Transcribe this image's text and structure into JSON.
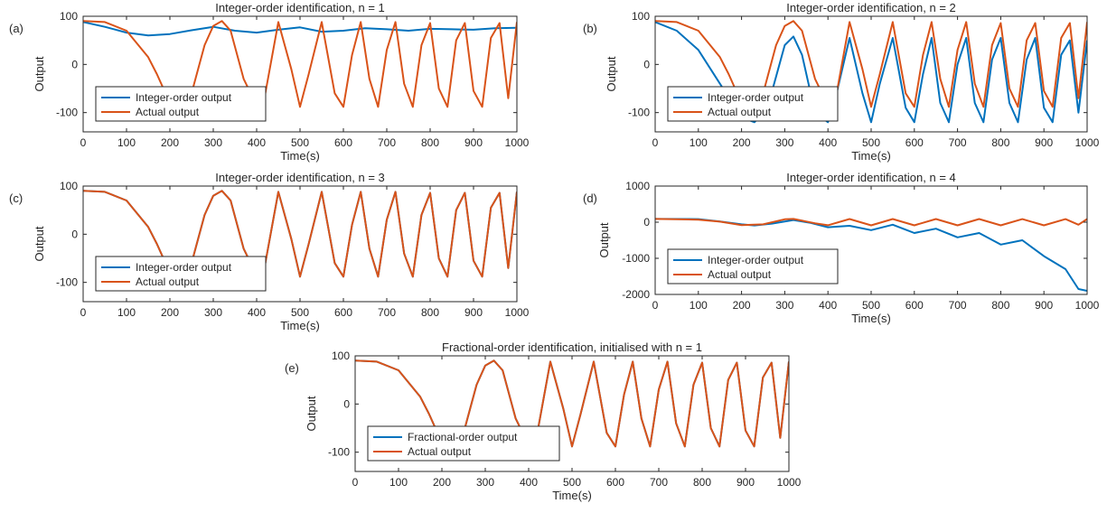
{
  "figure": {
    "panels": [
      {
        "letter": "(a)",
        "title": "Integer-order identification, n = 1",
        "ylabel": "Output",
        "xlabel": "Time(s)"
      },
      {
        "letter": "(b)",
        "title": "Integer-order identification, n = 2",
        "ylabel": "Output",
        "xlabel": "Time(s)"
      },
      {
        "letter": "(c)",
        "title": "Integer-order identification, n = 3",
        "ylabel": "Output",
        "xlabel": "Time(s)"
      },
      {
        "letter": "(d)",
        "title": "Integer-order identification, n = 4",
        "ylabel": "Output",
        "xlabel": "Time(s)"
      },
      {
        "letter": "(e)",
        "title": "Fractional-order identification, initialised with n = 1",
        "ylabel": "Output",
        "xlabel": "Time(s)"
      }
    ]
  },
  "chart_data": [
    {
      "type": "line",
      "title": "Integer-order identification, n = 1",
      "xlabel": "Time(s)",
      "ylabel": "Output",
      "xlim": [
        0,
        1000
      ],
      "ylim": [
        -140,
        100
      ],
      "xticks": [
        0,
        100,
        200,
        300,
        400,
        500,
        600,
        700,
        800,
        900,
        1000
      ],
      "yticks": [
        -100,
        0,
        100
      ],
      "legend": "lower-left",
      "series": [
        {
          "name": "Integer-order output",
          "color": "#0072BD",
          "x": [
            0,
            50,
            100,
            150,
            200,
            250,
            300,
            350,
            400,
            450,
            500,
            550,
            600,
            650,
            700,
            750,
            800,
            850,
            900,
            950,
            1000
          ],
          "y": [
            88,
            78,
            66,
            60,
            63,
            71,
            78,
            70,
            66,
            72,
            77,
            68,
            70,
            75,
            73,
            70,
            74,
            73,
            72,
            75,
            76
          ]
        },
        {
          "name": "Actual output",
          "color": "#D95319",
          "x": [
            0,
            50,
            100,
            150,
            170,
            200,
            250,
            280,
            300,
            320,
            340,
            370,
            400,
            420,
            450,
            480,
            500,
            520,
            550,
            580,
            600,
            620,
            640,
            660,
            680,
            700,
            720,
            740,
            760,
            780,
            800,
            820,
            840,
            860,
            880,
            900,
            920,
            940,
            960,
            980,
            1000
          ],
          "y": [
            90,
            88,
            70,
            15,
            -20,
            -80,
            -60,
            40,
            80,
            90,
            70,
            -30,
            -85,
            -60,
            88,
            -10,
            -88,
            -20,
            88,
            -60,
            -88,
            20,
            88,
            -30,
            -88,
            30,
            88,
            -40,
            -88,
            40,
            86,
            -50,
            -88,
            50,
            86,
            -55,
            -88,
            55,
            86,
            -70,
            88
          ]
        }
      ]
    },
    {
      "type": "line",
      "title": "Integer-order identification, n = 2",
      "xlabel": "Time(s)",
      "ylabel": "Output",
      "xlim": [
        0,
        1000
      ],
      "ylim": [
        -140,
        100
      ],
      "xticks": [
        0,
        100,
        200,
        300,
        400,
        500,
        600,
        700,
        800,
        900,
        1000
      ],
      "yticks": [
        -100,
        0,
        100
      ],
      "legend": "lower-left",
      "series": [
        {
          "name": "Integer-order output",
          "color": "#0072BD",
          "x": [
            0,
            50,
            100,
            150,
            200,
            230,
            260,
            300,
            320,
            340,
            370,
            400,
            420,
            450,
            480,
            500,
            520,
            550,
            580,
            600,
            620,
            640,
            660,
            680,
            700,
            720,
            740,
            760,
            780,
            800,
            820,
            840,
            860,
            880,
            900,
            920,
            940,
            960,
            980,
            1000
          ],
          "y": [
            88,
            70,
            30,
            -40,
            -110,
            -120,
            -90,
            40,
            58,
            20,
            -100,
            -120,
            -60,
            55,
            -60,
            -120,
            -40,
            55,
            -90,
            -120,
            -20,
            55,
            -80,
            -120,
            0,
            55,
            -80,
            -120,
            10,
            55,
            -80,
            -120,
            10,
            55,
            -90,
            -120,
            20,
            50,
            -100,
            50
          ]
        },
        {
          "name": "Actual output",
          "color": "#D95319",
          "x": [
            0,
            50,
            100,
            150,
            170,
            200,
            250,
            280,
            300,
            320,
            340,
            370,
            400,
            420,
            450,
            480,
            500,
            520,
            550,
            580,
            600,
            620,
            640,
            660,
            680,
            700,
            720,
            740,
            760,
            780,
            800,
            820,
            840,
            860,
            880,
            900,
            920,
            940,
            960,
            980,
            1000
          ],
          "y": [
            90,
            88,
            70,
            15,
            -20,
            -80,
            -60,
            40,
            80,
            90,
            70,
            -30,
            -85,
            -60,
            88,
            -10,
            -88,
            -20,
            88,
            -60,
            -88,
            20,
            88,
            -30,
            -88,
            30,
            88,
            -40,
            -88,
            40,
            86,
            -50,
            -88,
            50,
            86,
            -55,
            -88,
            55,
            86,
            -70,
            88
          ]
        }
      ]
    },
    {
      "type": "line",
      "title": "Integer-order identification, n = 3",
      "xlabel": "Time(s)",
      "ylabel": "Output",
      "xlim": [
        0,
        1000
      ],
      "ylim": [
        -140,
        100
      ],
      "xticks": [
        0,
        100,
        200,
        300,
        400,
        500,
        600,
        700,
        800,
        900,
        1000
      ],
      "yticks": [
        -100,
        0,
        100
      ],
      "legend": "lower-left",
      "series": [
        {
          "name": "Integer-order output",
          "color": "#0072BD",
          "x": [
            0,
            50,
            100,
            150,
            170,
            200,
            250,
            280,
            300,
            320,
            340,
            370,
            400,
            420,
            450,
            480,
            500,
            520,
            550,
            580,
            600,
            620,
            640,
            660,
            680,
            700,
            720,
            740,
            760,
            780,
            800,
            820,
            840,
            860,
            880,
            900,
            920,
            940,
            960,
            980,
            1000
          ],
          "y": [
            90,
            88,
            70,
            15,
            -20,
            -80,
            -60,
            40,
            80,
            90,
            70,
            -30,
            -85,
            -60,
            88,
            -10,
            -88,
            -20,
            88,
            -60,
            -88,
            20,
            88,
            -30,
            -88,
            30,
            88,
            -40,
            -88,
            40,
            86,
            -50,
            -88,
            50,
            86,
            -55,
            -88,
            55,
            86,
            -70,
            88
          ]
        },
        {
          "name": "Actual output",
          "color": "#D95319",
          "x": [
            0,
            50,
            100,
            150,
            170,
            200,
            250,
            280,
            300,
            320,
            340,
            370,
            400,
            420,
            450,
            480,
            500,
            520,
            550,
            580,
            600,
            620,
            640,
            660,
            680,
            700,
            720,
            740,
            760,
            780,
            800,
            820,
            840,
            860,
            880,
            900,
            920,
            940,
            960,
            980,
            1000
          ],
          "y": [
            90,
            88,
            70,
            15,
            -20,
            -80,
            -60,
            40,
            80,
            90,
            70,
            -30,
            -85,
            -60,
            88,
            -10,
            -88,
            -20,
            88,
            -60,
            -88,
            20,
            88,
            -30,
            -88,
            30,
            88,
            -40,
            -88,
            40,
            86,
            -50,
            -88,
            50,
            86,
            -55,
            -88,
            55,
            86,
            -70,
            88
          ]
        }
      ]
    },
    {
      "type": "line",
      "title": "Integer-order identification, n = 4",
      "xlabel": "Time(s)",
      "ylabel": "Output",
      "xlim": [
        0,
        1000
      ],
      "ylim": [
        -2000,
        1000
      ],
      "xticks": [
        0,
        100,
        200,
        300,
        400,
        500,
        600,
        700,
        800,
        900,
        1000
      ],
      "yticks": [
        -2000,
        -1000,
        0,
        1000
      ],
      "legend": "lower-left",
      "series": [
        {
          "name": "Integer-order output",
          "color": "#0072BD",
          "x": [
            0,
            100,
            150,
            200,
            230,
            270,
            320,
            360,
            400,
            450,
            500,
            550,
            600,
            650,
            700,
            750,
            800,
            850,
            900,
            950,
            980,
            1000
          ],
          "y": [
            90,
            85,
            20,
            -60,
            -90,
            -40,
            60,
            -20,
            -140,
            -100,
            -220,
            -70,
            -300,
            -180,
            -420,
            -300,
            -620,
            -500,
            -940,
            -1300,
            -1850,
            -1900
          ]
        },
        {
          "name": "Actual output",
          "color": "#D95319",
          "x": [
            0,
            100,
            150,
            200,
            250,
            300,
            320,
            370,
            400,
            450,
            500,
            550,
            600,
            650,
            700,
            750,
            800,
            850,
            900,
            950,
            980,
            1000
          ],
          "y": [
            90,
            70,
            15,
            -80,
            -60,
            80,
            90,
            -30,
            -85,
            88,
            -88,
            88,
            -88,
            88,
            -88,
            88,
            -88,
            86,
            -88,
            86,
            -70,
            88
          ]
        }
      ]
    },
    {
      "type": "line",
      "title": "Fractional-order identification, initialised with n = 1",
      "xlabel": "Time(s)",
      "ylabel": "Output",
      "xlim": [
        0,
        1000
      ],
      "ylim": [
        -140,
        100
      ],
      "xticks": [
        0,
        100,
        200,
        300,
        400,
        500,
        600,
        700,
        800,
        900,
        1000
      ],
      "yticks": [
        -100,
        0,
        100
      ],
      "legend": "lower-left",
      "series": [
        {
          "name": "Fractional-order output",
          "color": "#0072BD",
          "x": [
            0,
            50,
            100,
            150,
            170,
            200,
            250,
            280,
            300,
            320,
            340,
            370,
            400,
            420,
            450,
            480,
            500,
            520,
            550,
            580,
            600,
            620,
            640,
            660,
            680,
            700,
            720,
            740,
            760,
            780,
            800,
            820,
            840,
            860,
            880,
            900,
            920,
            940,
            960,
            980,
            1000
          ],
          "y": [
            90,
            88,
            70,
            15,
            -20,
            -80,
            -60,
            40,
            80,
            90,
            70,
            -30,
            -85,
            -60,
            88,
            -10,
            -88,
            -20,
            88,
            -60,
            -88,
            20,
            88,
            -30,
            -88,
            30,
            88,
            -40,
            -88,
            40,
            86,
            -50,
            -88,
            50,
            86,
            -55,
            -88,
            55,
            86,
            -70,
            88
          ]
        },
        {
          "name": "Actual output",
          "color": "#D95319",
          "x": [
            0,
            50,
            100,
            150,
            170,
            200,
            250,
            280,
            300,
            320,
            340,
            370,
            400,
            420,
            450,
            480,
            500,
            520,
            550,
            580,
            600,
            620,
            640,
            660,
            680,
            700,
            720,
            740,
            760,
            780,
            800,
            820,
            840,
            860,
            880,
            900,
            920,
            940,
            960,
            980,
            1000
          ],
          "y": [
            90,
            88,
            70,
            15,
            -20,
            -80,
            -60,
            40,
            80,
            90,
            70,
            -30,
            -85,
            -60,
            88,
            -10,
            -88,
            -20,
            88,
            -60,
            -88,
            20,
            88,
            -30,
            -88,
            30,
            88,
            -40,
            -88,
            40,
            86,
            -50,
            -88,
            50,
            86,
            -55,
            -88,
            55,
            86,
            -70,
            88
          ]
        }
      ]
    }
  ]
}
